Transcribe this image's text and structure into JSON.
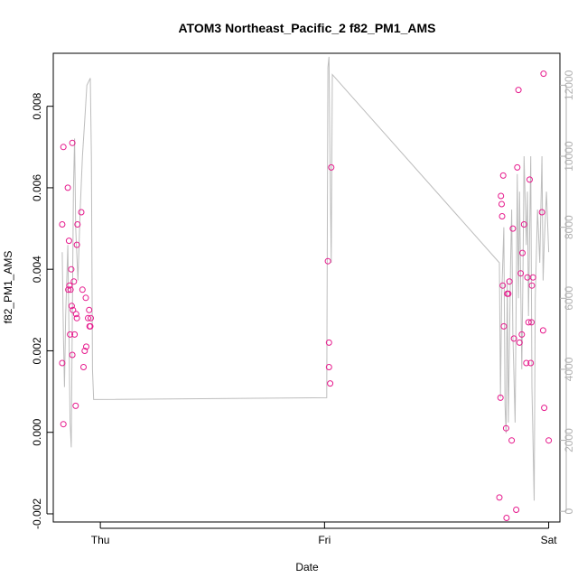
{
  "chart_data": {
    "type": "scatter",
    "title": "ATOM3 Northeast_Pacific_2 f82_PM1_AMS",
    "xlabel": "Date",
    "ylabel": "f82_PM1_AMS",
    "x_ticks": [
      "Thu",
      "Fri",
      "Sat"
    ],
    "y_ticks": [
      "-0.002",
      "0.000",
      "0.002",
      "0.004",
      "0.006",
      "0.008"
    ],
    "y2_ticks": [
      "0",
      "2000",
      "4000",
      "6000",
      "8000",
      "10000",
      "12000"
    ],
    "xlim": [
      -0.21,
      2.05
    ],
    "ylim": [
      -0.0022,
      0.0093
    ],
    "y2lim": [
      -300,
      12900
    ],
    "point_color": "#e6198c",
    "line_color": "#bdbdbd",
    "axis_color": "#000000",
    "y2_axis_color": "#b0b0b0",
    "series": [
      {
        "values": [
          [
            -0.17,
            0.0017
          ],
          [
            -0.165,
            0.0002
          ],
          [
            -0.165,
            0.007
          ],
          [
            -0.17,
            0.0051
          ],
          [
            -0.145,
            0.006
          ],
          [
            -0.143,
            0.0035
          ],
          [
            -0.14,
            0.0047
          ],
          [
            -0.138,
            0.0036
          ],
          [
            -0.135,
            0.0024
          ],
          [
            -0.133,
            0.0035
          ],
          [
            -0.13,
            0.004
          ],
          [
            -0.128,
            0.0031
          ],
          [
            -0.125,
            0.0019
          ],
          [
            -0.125,
            0.0071
          ],
          [
            -0.122,
            0.003
          ],
          [
            -0.118,
            0.0037
          ],
          [
            -0.115,
            0.0024
          ],
          [
            -0.11,
            0.00065
          ],
          [
            -0.108,
            0.0029
          ],
          [
            -0.105,
            0.0046
          ],
          [
            -0.105,
            0.0028
          ],
          [
            -0.102,
            0.0051
          ],
          [
            -0.085,
            0.0054
          ],
          [
            -0.08,
            0.0035
          ],
          [
            -0.075,
            0.0016
          ],
          [
            -0.07,
            0.002
          ],
          [
            -0.065,
            0.0033
          ],
          [
            -0.063,
            0.0021
          ],
          [
            -0.055,
            0.0028
          ],
          [
            -0.05,
            0.003
          ],
          [
            -0.048,
            0.0026
          ],
          [
            -0.045,
            0.0026
          ],
          [
            -0.043,
            0.0028
          ],
          [
            1.015,
            0.0042
          ],
          [
            1.02,
            0.0022
          ],
          [
            1.02,
            0.0016
          ],
          [
            1.025,
            0.0012
          ],
          [
            1.03,
            0.0065
          ],
          [
            1.78,
            -0.0016
          ],
          [
            1.785,
            0.00085
          ],
          [
            1.787,
            0.0058
          ],
          [
            1.79,
            0.0056
          ],
          [
            1.792,
            0.0053
          ],
          [
            1.795,
            0.0036
          ],
          [
            1.797,
            0.0063
          ],
          [
            1.8,
            0.0026
          ],
          [
            1.81,
            0.0001
          ],
          [
            1.812,
            -0.0021
          ],
          [
            1.815,
            0.0034
          ],
          [
            1.82,
            0.0034
          ],
          [
            1.825,
            0.0037
          ],
          [
            1.835,
            -0.0002
          ],
          [
            1.84,
            0.005
          ],
          [
            1.845,
            0.0023
          ],
          [
            1.855,
            -0.0019
          ],
          [
            1.86,
            0.0065
          ],
          [
            1.865,
            0.0084
          ],
          [
            1.87,
            0.0022
          ],
          [
            1.875,
            0.0039
          ],
          [
            1.88,
            0.0024
          ],
          [
            1.883,
            0.0044
          ],
          [
            1.89,
            0.0051
          ],
          [
            1.9,
            0.0017
          ],
          [
            1.905,
            0.0038
          ],
          [
            1.91,
            0.0027
          ],
          [
            1.915,
            0.0062
          ],
          [
            1.92,
            0.0017
          ],
          [
            1.923,
            0.0027
          ],
          [
            1.925,
            0.0036
          ],
          [
            1.93,
            0.0038
          ],
          [
            1.97,
            0.0054
          ],
          [
            1.975,
            0.0025
          ],
          [
            1.977,
            0.0088
          ],
          [
            1.98,
            0.0006
          ],
          [
            2.0,
            -0.0002
          ]
        ]
      },
      {
        "axis": "right",
        "values": [
          [
            -0.17,
            7300
          ],
          [
            -0.165,
            5000
          ],
          [
            -0.16,
            3500
          ],
          [
            -0.155,
            5500
          ],
          [
            -0.15,
            6500
          ],
          [
            -0.145,
            7500
          ],
          [
            -0.14,
            5000
          ],
          [
            -0.135,
            2500
          ],
          [
            -0.13,
            1800
          ],
          [
            -0.125,
            5500
          ],
          [
            -0.12,
            9000
          ],
          [
            -0.115,
            10500
          ],
          [
            -0.11,
            8000
          ],
          [
            -0.1,
            6500
          ],
          [
            -0.09,
            8500
          ],
          [
            -0.08,
            10000
          ],
          [
            -0.07,
            11000
          ],
          [
            -0.06,
            12000
          ],
          [
            -0.045,
            12200
          ],
          [
            -0.04,
            10000
          ],
          [
            -0.035,
            4000
          ],
          [
            -0.03,
            3150
          ],
          [
            1.01,
            3200
          ],
          [
            1.015,
            12500
          ],
          [
            1.02,
            12800
          ],
          [
            1.025,
            9500
          ],
          [
            1.03,
            7000
          ],
          [
            1.035,
            12300
          ],
          [
            1.78,
            7000
          ],
          [
            1.785,
            3200
          ],
          [
            1.79,
            6000
          ],
          [
            1.8,
            8000
          ],
          [
            1.805,
            3000
          ],
          [
            1.81,
            2200
          ],
          [
            1.815,
            6500
          ],
          [
            1.82,
            2500
          ],
          [
            1.83,
            7000
          ],
          [
            1.835,
            8500
          ],
          [
            1.84,
            5000
          ],
          [
            1.85,
            2500
          ],
          [
            1.86,
            9500
          ],
          [
            1.865,
            6000
          ],
          [
            1.87,
            9000
          ],
          [
            1.88,
            4000
          ],
          [
            1.885,
            6500
          ],
          [
            1.89,
            10000
          ],
          [
            1.9,
            7500
          ],
          [
            1.905,
            9000
          ],
          [
            1.91,
            5500
          ],
          [
            1.92,
            10000
          ],
          [
            1.925,
            3500
          ],
          [
            1.935,
            300
          ],
          [
            1.94,
            6000
          ],
          [
            1.95,
            8500
          ],
          [
            1.96,
            7000
          ],
          [
            1.97,
            10000
          ],
          [
            1.975,
            6500
          ],
          [
            1.98,
            7500
          ],
          [
            1.99,
            9000
          ],
          [
            2.0,
            7300
          ]
        ]
      }
    ],
    "grid": false,
    "legend": "none"
  }
}
